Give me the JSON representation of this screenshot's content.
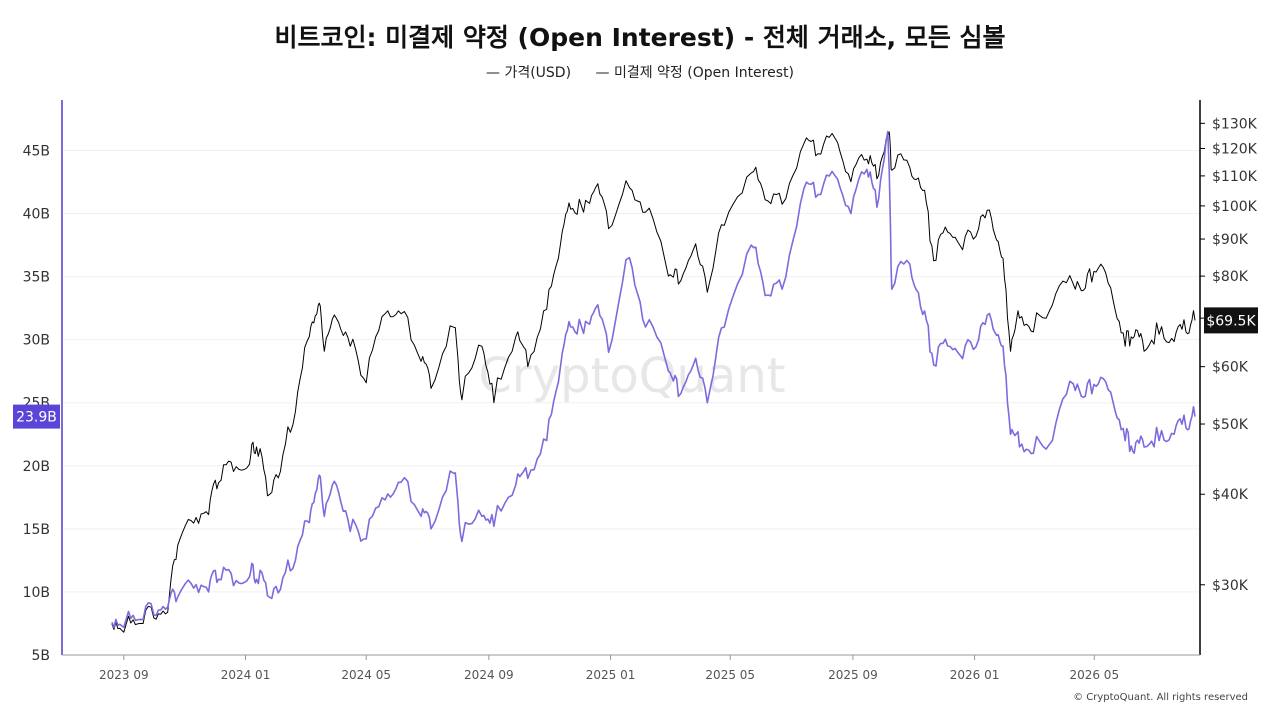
{
  "chart_data": {
    "type": "line",
    "title": "비트코인: 미결제 약정 (Open Interest) - 전체 거래소, 모든 심볼",
    "legend": {
      "placement": "top-center",
      "price_label": "— 가격(USD)",
      "oi_label": "— 미결제 약정 (Open Interest)"
    },
    "x_ticks": [
      "2023 09",
      "2024 01",
      "2024 05",
      "2024 09",
      "2025 01",
      "2025 05",
      "2025 09",
      "2026 01",
      "2026 05"
    ],
    "x_range": [
      "2023-07-01",
      "2026-08-15"
    ],
    "left_axis": {
      "ticks": [
        "5B",
        "10B",
        "15B",
        "20B",
        "25B",
        "30B",
        "35B",
        "40B",
        "45B"
      ],
      "values": [
        5,
        10,
        15,
        20,
        25,
        30,
        35,
        40,
        45
      ],
      "range": [
        5,
        49
      ],
      "unit": "B"
    },
    "right_axis": {
      "scale": "log",
      "ticks": [
        "$30K",
        "$40K",
        "$50K",
        "$60K",
        "$70K",
        "$80K",
        "$90K",
        "$100K",
        "$110K",
        "$120K",
        "$130K"
      ],
      "values": [
        30000,
        40000,
        50000,
        60000,
        70000,
        80000,
        90000,
        100000,
        110000,
        120000,
        130000
      ],
      "range": [
        24000,
        140000
      ]
    },
    "current_price_label": "$69.5K",
    "current_oi_label": "23.9B",
    "grid": true,
    "series": [
      {
        "key": "price",
        "color": "#000000",
        "points": [
          [
            "2023-08-20",
            26500
          ],
          [
            "2023-09-01",
            25800
          ],
          [
            "2023-09-15",
            26500
          ],
          [
            "2023-10-01",
            27000
          ],
          [
            "2023-10-15",
            27500
          ],
          [
            "2023-10-25",
            34000
          ],
          [
            "2023-11-10",
            36500
          ],
          [
            "2023-11-25",
            37500
          ],
          [
            "2023-12-05",
            41500
          ],
          [
            "2023-12-20",
            43000
          ],
          [
            "2024-01-05",
            44000
          ],
          [
            "2024-01-12",
            46500
          ],
          [
            "2024-01-23",
            39800
          ],
          [
            "2024-02-05",
            43000
          ],
          [
            "2024-02-20",
            52000
          ],
          [
            "2024-03-05",
            66000
          ],
          [
            "2024-03-14",
            73000
          ],
          [
            "2024-03-20",
            63000
          ],
          [
            "2024-04-01",
            70000
          ],
          [
            "2024-04-15",
            64000
          ],
          [
            "2024-05-01",
            57000
          ],
          [
            "2024-05-20",
            71000
          ],
          [
            "2024-06-05",
            71000
          ],
          [
            "2024-06-25",
            61000
          ],
          [
            "2024-07-05",
            56000
          ],
          [
            "2024-07-28",
            68000
          ],
          [
            "2024-08-05",
            54000
          ],
          [
            "2024-08-25",
            64000
          ],
          [
            "2024-09-06",
            53500
          ],
          [
            "2024-09-28",
            66000
          ],
          [
            "2024-10-10",
            60000
          ],
          [
            "2024-10-29",
            72000
          ],
          [
            "2024-11-12",
            89000
          ],
          [
            "2024-11-22",
            99000
          ],
          [
            "2024-12-05",
            98000
          ],
          [
            "2024-12-17",
            106000
          ],
          [
            "2024-12-30",
            93000
          ],
          [
            "2025-01-20",
            106000
          ],
          [
            "2025-02-05",
            98000
          ],
          [
            "2025-02-28",
            80000
          ],
          [
            "2025-03-10",
            78000
          ],
          [
            "2025-03-25",
            87000
          ],
          [
            "2025-04-08",
            76000
          ],
          [
            "2025-04-25",
            94000
          ],
          [
            "2025-05-22",
            111000
          ],
          [
            "2025-06-05",
            102000
          ],
          [
            "2025-06-22",
            100500
          ],
          [
            "2025-07-14",
            122000
          ],
          [
            "2025-07-28",
            118000
          ],
          [
            "2025-08-14",
            124000
          ],
          [
            "2025-08-30",
            108000
          ],
          [
            "2025-09-15",
            116000
          ],
          [
            "2025-09-25",
            109000
          ],
          [
            "2025-10-06",
            125500
          ],
          [
            "2025-10-10",
            112000
          ],
          [
            "2025-10-28",
            113000
          ],
          [
            "2025-11-10",
            105000
          ],
          [
            "2025-11-21",
            84000
          ],
          [
            "2025-12-05",
            92000
          ],
          [
            "2025-12-20",
            87000
          ],
          [
            "2026-01-05",
            93000
          ],
          [
            "2026-01-18",
            96000
          ],
          [
            "2026-01-28",
            85000
          ],
          [
            "2026-02-06",
            63000
          ],
          [
            "2026-02-15",
            70000
          ],
          [
            "2026-03-01",
            67000
          ],
          [
            "2026-03-20",
            73000
          ],
          [
            "2026-04-10",
            78000
          ],
          [
            "2026-04-22",
            77000
          ],
          [
            "2026-05-05",
            82000
          ],
          [
            "2026-05-20",
            74000
          ],
          [
            "2026-06-01",
            64000
          ],
          [
            "2026-06-10",
            66000
          ],
          [
            "2026-06-20",
            63000
          ],
          [
            "2026-07-05",
            66500
          ],
          [
            "2026-07-20",
            65000
          ],
          [
            "2026-08-01",
            67000
          ],
          [
            "2026-08-10",
            69500
          ]
        ]
      },
      {
        "key": "oi",
        "color": "#7b6cde",
        "points": [
          [
            "2023-08-20",
            7.6
          ],
          [
            "2023-09-01",
            7.2
          ],
          [
            "2023-09-15",
            7.8
          ],
          [
            "2023-10-01",
            8.2
          ],
          [
            "2023-10-15",
            8.8
          ],
          [
            "2023-10-25",
            9.6
          ],
          [
            "2023-11-10",
            10.3
          ],
          [
            "2023-11-25",
            10.0
          ],
          [
            "2023-12-05",
            11.0
          ],
          [
            "2023-12-20",
            10.5
          ],
          [
            "2024-01-05",
            11.2
          ],
          [
            "2024-01-12",
            11.0
          ],
          [
            "2024-01-23",
            9.7
          ],
          [
            "2024-02-05",
            10.2
          ],
          [
            "2024-02-20",
            12.5
          ],
          [
            "2024-03-05",
            15.5
          ],
          [
            "2024-03-14",
            19.0
          ],
          [
            "2024-03-20",
            16.0
          ],
          [
            "2024-04-01",
            18.5
          ],
          [
            "2024-04-15",
            14.8
          ],
          [
            "2024-05-01",
            14.2
          ],
          [
            "2024-05-20",
            17.3
          ],
          [
            "2024-06-05",
            18.7
          ],
          [
            "2024-06-25",
            16.0
          ],
          [
            "2024-07-05",
            15.0
          ],
          [
            "2024-07-28",
            19.4
          ],
          [
            "2024-08-05",
            14.0
          ],
          [
            "2024-08-25",
            16.0
          ],
          [
            "2024-09-06",
            15.2
          ],
          [
            "2024-09-28",
            18.5
          ],
          [
            "2024-10-10",
            19.0
          ],
          [
            "2024-10-29",
            22.0
          ],
          [
            "2024-11-12",
            28.0
          ],
          [
            "2024-11-22",
            31.0
          ],
          [
            "2024-12-05",
            30.5
          ],
          [
            "2024-12-17",
            32.5
          ],
          [
            "2024-12-30",
            29.0
          ],
          [
            "2025-01-20",
            36.5
          ],
          [
            "2025-02-05",
            31.0
          ],
          [
            "2025-02-28",
            27.5
          ],
          [
            "2025-03-10",
            25.5
          ],
          [
            "2025-03-25",
            28.0
          ],
          [
            "2025-04-08",
            25.0
          ],
          [
            "2025-04-25",
            31.0
          ],
          [
            "2025-05-22",
            37.5
          ],
          [
            "2025-06-05",
            33.5
          ],
          [
            "2025-06-22",
            34.0
          ],
          [
            "2025-07-14",
            42.0
          ],
          [
            "2025-07-28",
            41.5
          ],
          [
            "2025-08-14",
            43.0
          ],
          [
            "2025-08-30",
            40.0
          ],
          [
            "2025-09-15",
            43.5
          ],
          [
            "2025-09-25",
            40.5
          ],
          [
            "2025-10-06",
            46.5
          ],
          [
            "2025-10-10",
            34.0
          ],
          [
            "2025-10-28",
            36.0
          ],
          [
            "2025-11-10",
            32.0
          ],
          [
            "2025-11-21",
            28.0
          ],
          [
            "2025-12-05",
            29.5
          ],
          [
            "2025-12-20",
            28.5
          ],
          [
            "2026-01-05",
            30.0
          ],
          [
            "2026-01-18",
            31.5
          ],
          [
            "2026-01-28",
            29.5
          ],
          [
            "2026-02-06",
            22.5
          ],
          [
            "2026-02-15",
            21.5
          ],
          [
            "2026-03-01",
            21.0
          ],
          [
            "2026-03-20",
            22.0
          ],
          [
            "2026-04-10",
            26.5
          ],
          [
            "2026-04-22",
            25.5
          ],
          [
            "2026-05-05",
            26.5
          ],
          [
            "2026-05-20",
            25.0
          ],
          [
            "2026-06-01",
            22.0
          ],
          [
            "2026-06-10",
            21.0
          ],
          [
            "2026-06-20",
            21.5
          ],
          [
            "2026-07-05",
            22.0
          ],
          [
            "2026-07-20",
            22.5
          ],
          [
            "2026-08-01",
            23.0
          ],
          [
            "2026-08-10",
            23.9
          ]
        ]
      }
    ]
  },
  "watermark": "CryptoQuant",
  "copyright": "© CryptoQuant. All rights reserved"
}
